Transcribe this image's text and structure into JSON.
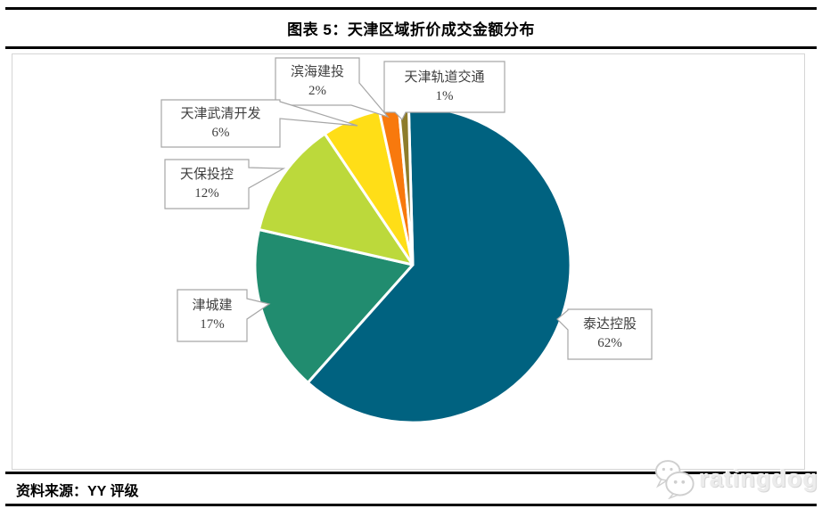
{
  "page": {
    "title": "图表 5：天津区域折价成交金额分布",
    "source_label": "资料来源：YY 评级",
    "watermark_text": "ratingdog"
  },
  "chart_data": {
    "type": "pie",
    "title": "图表 5：天津区域折价成交金额分布",
    "start_angle_deg": -1.5,
    "direction": "clockwise",
    "legend_position": "none",
    "label_style": "callout-boxes-with-name-and-percent",
    "slices": [
      {
        "name": "泰达控股",
        "value": 62,
        "pct_label": "62%",
        "color": "#006280"
      },
      {
        "name": "津城建",
        "value": 17,
        "pct_label": "17%",
        "color": "#218C6F"
      },
      {
        "name": "天保投控",
        "value": 12,
        "pct_label": "12%",
        "color": "#BCD93B"
      },
      {
        "name": "天津武清开发",
        "value": 6,
        "pct_label": "6%",
        "color": "#FFDE17"
      },
      {
        "name": "滨海建投",
        "value": 2,
        "pct_label": "2%",
        "color": "#F8790D"
      },
      {
        "name": "天津轨道交通",
        "value": 1,
        "pct_label": "1%",
        "color": "#8E7C2B"
      }
    ]
  }
}
